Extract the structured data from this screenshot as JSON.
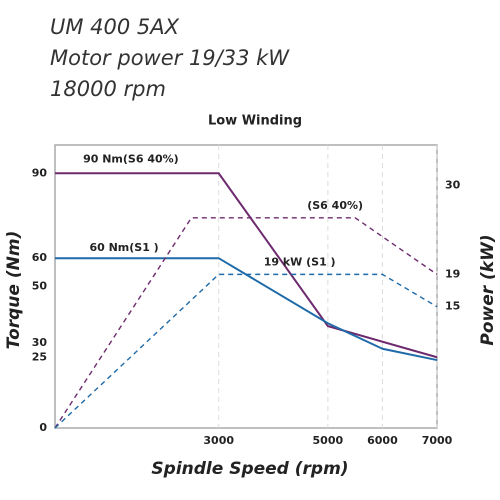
{
  "chart_data": {
    "type": "line",
    "header": [
      "UM 400 5AX",
      "Motor power 19/33 kW",
      "18000 rpm"
    ],
    "title": "Low Winding",
    "x_label": "Spindle Speed (rpm)",
    "y_label": "Torque (Nm)",
    "y2_label": "Power (kW)",
    "xlim": [
      0,
      7000
    ],
    "xticks": [
      3000,
      5000,
      6000,
      7000
    ],
    "ylim": [
      0,
      100
    ],
    "yticks": [
      0,
      25,
      30,
      50,
      60,
      90
    ],
    "y2lim": [
      0,
      35
    ],
    "y2ticks": [
      15,
      19,
      30
    ],
    "grid": true,
    "series": [
      {
        "name": "90 Nm(S6 40%)",
        "color": "#6e2a6e",
        "x": [
          0,
          3000,
          5000,
          7000
        ],
        "values": [
          90,
          90,
          36,
          25
        ]
      },
      {
        "name": "60 Nm(S1 )",
        "color": "#1f6aa8",
        "x": [
          0,
          3000,
          5000,
          6000,
          7000
        ],
        "values": [
          60,
          60,
          37,
          28,
          24
        ]
      },
      {
        "name": "(S6 40%)",
        "color": "#6e2a6e",
        "axis": "y2",
        "dashed": true,
        "x": [
          0,
          2500,
          5500,
          7000
        ],
        "values": [
          0,
          26,
          26,
          19
        ]
      },
      {
        "name": "19 kW (S1 )",
        "color": "#1f6aa8",
        "axis": "y2",
        "dashed": true,
        "x": [
          0,
          3000,
          6000,
          7000
        ],
        "values": [
          0,
          19,
          19,
          15
        ]
      }
    ]
  }
}
